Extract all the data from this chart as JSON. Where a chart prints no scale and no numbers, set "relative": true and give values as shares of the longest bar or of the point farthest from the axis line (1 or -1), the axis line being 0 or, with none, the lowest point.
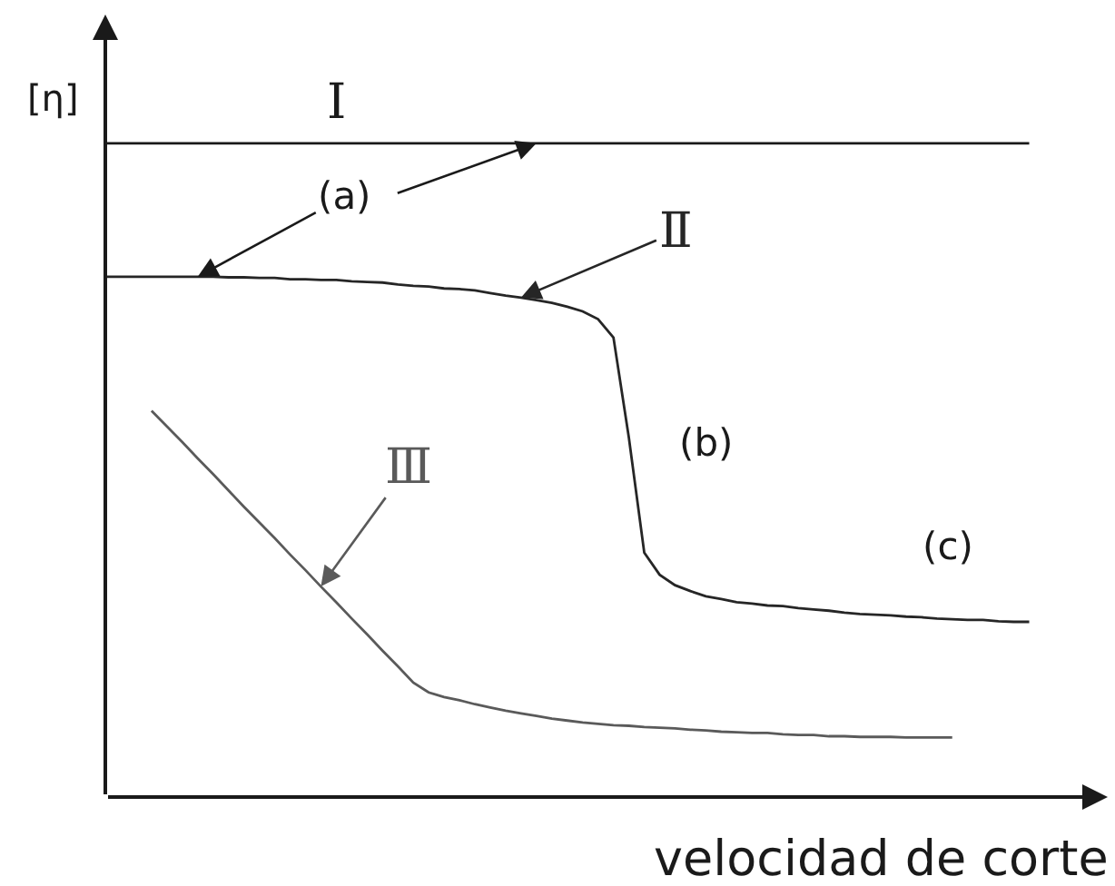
{
  "chart_data": {
    "type": "line",
    "relative": true,
    "xlabel": "velocidad de corte",
    "ylabel": "[η]",
    "categories": [
      null,
      null,
      null,
      null,
      null,
      null,
      null,
      null,
      null,
      null,
      null,
      null,
      null,
      null,
      null,
      null,
      null,
      null,
      null,
      null,
      null,
      null,
      null,
      null,
      null,
      null,
      null,
      null,
      null,
      null,
      null,
      null,
      null,
      null,
      null,
      null,
      null,
      null,
      null,
      null,
      null,
      null,
      null,
      null,
      null,
      null,
      null,
      null,
      null,
      null,
      null,
      null,
      null,
      null,
      null,
      null,
      null,
      null,
      null,
      null,
      null
    ],
    "series": [
      {
        "name": "Ⅰ",
        "color": "#1a1a1a",
        "values": [
          1,
          1,
          1,
          1,
          1,
          1,
          1,
          1,
          1,
          1,
          1,
          1,
          1,
          1,
          1,
          1,
          1,
          1,
          1,
          1,
          1,
          1,
          1,
          1,
          1,
          1,
          1,
          1,
          1,
          1,
          1,
          1,
          1,
          1,
          1,
          1,
          1,
          1,
          1,
          1,
          1,
          1,
          1,
          1,
          1,
          1,
          1,
          1,
          1,
          1,
          1,
          1,
          1,
          1,
          1,
          1,
          1,
          1,
          1,
          1,
          1
        ]
      },
      {
        "name": "Ⅱ",
        "color": "#262626",
        "values": [
          0.796,
          0.796,
          0.796,
          0.796,
          0.796,
          0.796,
          0.796,
          0.796,
          0.795,
          0.795,
          0.794,
          0.794,
          0.792,
          0.792,
          0.791,
          0.791,
          0.789,
          0.788,
          0.787,
          0.784,
          0.782,
          0.781,
          0.778,
          0.777,
          0.775,
          0.771,
          0.767,
          0.764,
          0.76,
          0.756,
          0.75,
          0.743,
          0.731,
          0.703,
          0.55,
          0.374,
          0.34,
          0.324,
          0.315,
          0.307,
          0.303,
          0.298,
          0.296,
          0.293,
          0.292,
          0.289,
          0.287,
          0.285,
          0.282,
          0.28,
          0.279,
          0.278,
          0.276,
          0.275,
          0.273,
          0.272,
          0.271,
          0.271,
          0.269,
          0.268,
          0.268
        ]
      },
      {
        "name": "Ⅲ",
        "color": "#5a5a5a",
        "values": [
          null,
          null,
          null,
          0.591,
          0.567,
          0.543,
          0.518,
          0.494,
          0.469,
          0.444,
          0.42,
          0.396,
          0.371,
          0.347,
          0.322,
          0.298,
          0.273,
          0.249,
          0.224,
          0.2,
          0.175,
          0.16,
          0.153,
          0.148,
          0.142,
          0.137,
          0.132,
          0.128,
          0.124,
          0.12,
          0.117,
          0.114,
          0.112,
          0.11,
          0.109,
          0.107,
          0.106,
          0.105,
          0.103,
          0.102,
          0.1,
          0.099,
          0.098,
          0.098,
          0.096,
          0.095,
          0.095,
          0.093,
          0.093,
          0.092,
          0.092,
          0.092,
          0.091,
          0.091,
          0.091,
          0.091,
          null,
          null,
          null,
          null,
          null
        ]
      }
    ],
    "annotations": [
      "(a)",
      "(b)",
      "(c)"
    ]
  }
}
